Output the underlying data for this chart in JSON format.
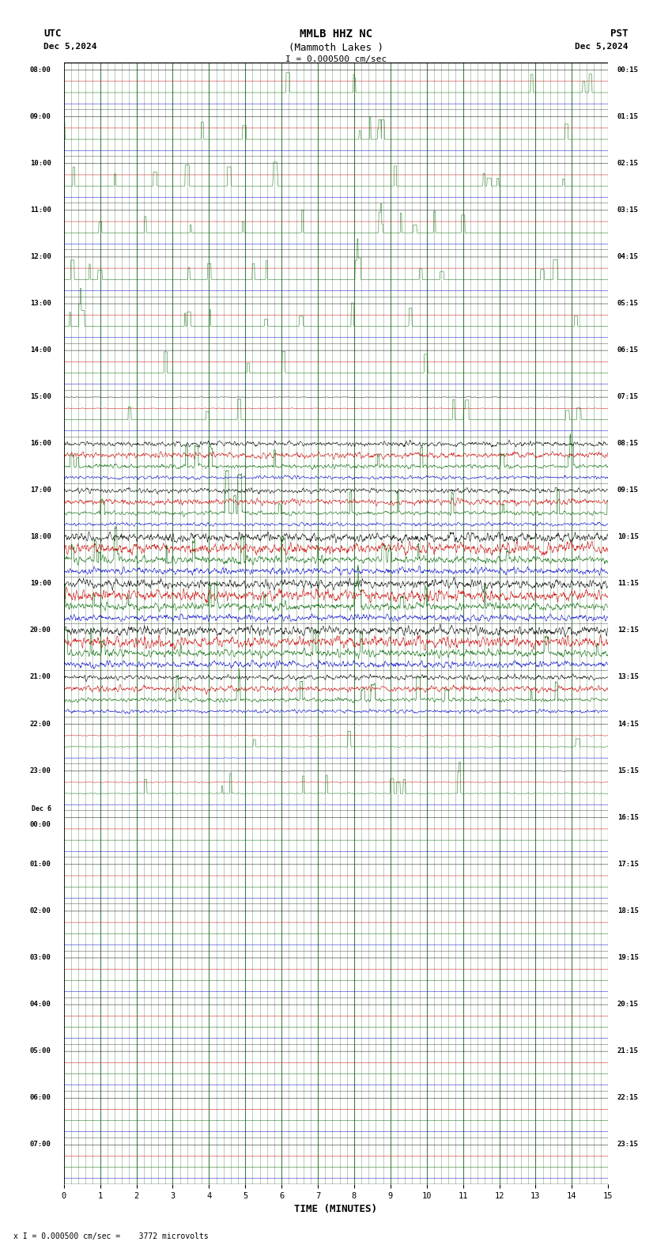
{
  "title_line1": "MMLB HHZ NC",
  "title_line2": "(Mammoth Lakes )",
  "scale_label": "I = 0.000500 cm/sec",
  "bottom_label": "x I = 0.000500 cm/sec =    3772 microvolts",
  "utc_label": "UTC",
  "utc_date": "Dec 5,2024",
  "pst_label": "PST",
  "pst_date": "Dec 5,2024",
  "xlabel": "TIME (MINUTES)",
  "bg_color": "#ffffff",
  "trace_color_black": "#000000",
  "trace_color_red": "#cc0000",
  "trace_color_green": "#006600",
  "trace_color_blue": "#0000cc",
  "grid_minor_color": "#005500",
  "grid_major_color": "#007700",
  "n_rows": 24,
  "minutes_per_row": 15,
  "row_labels_utc": [
    "08:00",
    "09:00",
    "10:00",
    "11:00",
    "12:00",
    "13:00",
    "14:00",
    "15:00",
    "16:00",
    "17:00",
    "18:00",
    "19:00",
    "20:00",
    "21:00",
    "22:00",
    "23:00",
    "00:00",
    "01:00",
    "02:00",
    "03:00",
    "04:00",
    "05:00",
    "06:00",
    "07:00"
  ],
  "row_labels_pst": [
    "00:15",
    "01:15",
    "02:15",
    "03:15",
    "04:15",
    "05:15",
    "06:15",
    "07:15",
    "08:15",
    "09:15",
    "10:15",
    "11:15",
    "12:15",
    "13:15",
    "14:15",
    "15:15",
    "16:15",
    "17:15",
    "18:15",
    "19:15",
    "20:15",
    "21:15",
    "22:15",
    "23:15"
  ],
  "dec6_row": 16,
  "active_rows": [
    8,
    9,
    10,
    11,
    12,
    13
  ],
  "moderate_rows": [
    7,
    14,
    15
  ],
  "sub_trace_offsets": [
    0.72,
    0.48,
    0.24,
    0.0
  ],
  "sub_trace_colors": [
    "black",
    "red",
    "green",
    "blue"
  ]
}
